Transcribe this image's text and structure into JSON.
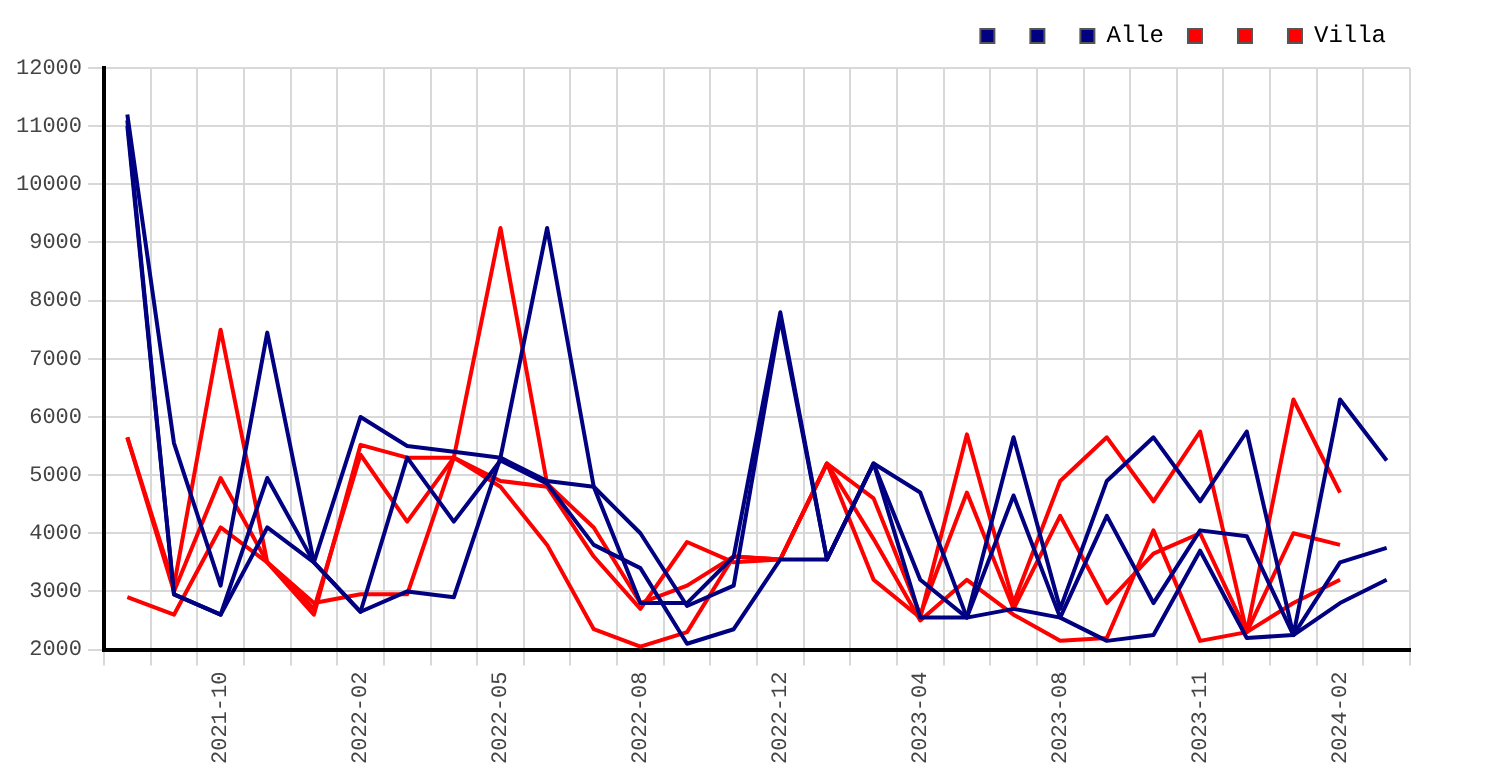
{
  "chart_data": {
    "type": "line",
    "categories": [
      null,
      null,
      "2021-10",
      null,
      null,
      "2022-02",
      null,
      null,
      "2022-05",
      null,
      null,
      "2022-08",
      null,
      null,
      "2022-12",
      null,
      null,
      "2023-04",
      null,
      null,
      "2023-08",
      null,
      null,
      "2023-11",
      null,
      null,
      "2024-02",
      null
    ],
    "series": [
      {
        "color": "#000080",
        "values": [
          11200,
          5550,
          3100,
          7450,
          3500,
          2650,
          3000,
          2900,
          5300,
          9250,
          4800,
          2800,
          2800,
          3600,
          7800,
          3550,
          5200,
          2550,
          2550,
          5650,
          2700,
          4900,
          5650,
          4550,
          5750,
          2250,
          6300,
          5250
        ]
      },
      {
        "color": "#000080",
        "values": [
          11100,
          2950,
          2600,
          4950,
          3500,
          6000,
          5500,
          5400,
          5300,
          4900,
          4800,
          4000,
          2750,
          3100,
          7700,
          3550,
          5200,
          4700,
          2550,
          4650,
          2550,
          4300,
          2800,
          4050,
          3950,
          2250,
          3500,
          3750
        ]
      },
      {
        "name": "Alle",
        "color": "#000080",
        "values": [
          11000,
          2950,
          2600,
          4100,
          3500,
          2650,
          5300,
          4200,
          5250,
          4850,
          3800,
          3400,
          2100,
          2350,
          3550,
          3550,
          5200,
          3200,
          2550,
          2700,
          2550,
          2150,
          2250,
          3700,
          2200,
          2250,
          2800,
          3200
        ]
      },
      {
        "color": "#ff0000",
        "values": [
          5650,
          3100,
          7500,
          3500,
          2800,
          2950,
          2950,
          5300,
          9250,
          4850,
          4100,
          2800,
          3100,
          3600,
          3550,
          5200,
          3200,
          2550,
          5700,
          2800,
          4900,
          5650,
          4550,
          5750,
          2300,
          6300,
          4700,
          null
        ]
      },
      {
        "color": "#ff0000",
        "values": [
          5650,
          3000,
          4950,
          3500,
          2600,
          5520,
          5300,
          5300,
          4900,
          4800,
          3600,
          2700,
          3850,
          3500,
          3550,
          5200,
          4600,
          2600,
          4700,
          2700,
          4300,
          2800,
          3650,
          4000,
          2300,
          4000,
          3800,
          null
        ]
      },
      {
        "name": "Villa",
        "color": "#ff0000",
        "values": [
          2900,
          2600,
          4100,
          3500,
          2700,
          5350,
          4200,
          5300,
          4800,
          3800,
          2350,
          2050,
          2300,
          3600,
          3550,
          5200,
          3900,
          2500,
          3200,
          2600,
          2150,
          2200,
          4050,
          2150,
          2300,
          2800,
          3200,
          null
        ]
      }
    ],
    "ylim": [
      2000,
      12000
    ],
    "yticks": [
      2000,
      3000,
      4000,
      5000,
      6000,
      7000,
      8000,
      9000,
      10000,
      11000,
      12000
    ],
    "grid": true,
    "legend": "top right",
    "marker": "none",
    "line_style": "solid"
  }
}
